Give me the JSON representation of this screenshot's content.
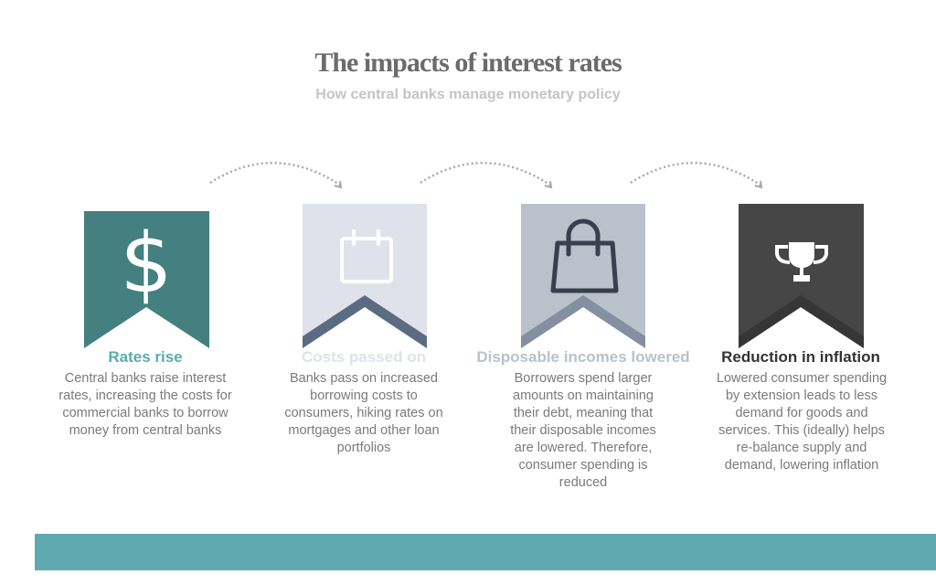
{
  "title": "The impacts of interest rates",
  "subtitle": "How central banks manage monetary policy",
  "steps": [
    {
      "heading": "Rates rise",
      "text": "Central banks raise interest rates, increasing the costs for commercial banks to borrow money from central banks",
      "icon": "dollar-icon",
      "color": "#43807f",
      "heading_color": "#5aabae"
    },
    {
      "heading": "Costs passed on",
      "text": "Banks pass on increased borrowing costs to consumers, hiking rates on mortgages and other loan portfolios",
      "icon": "calendar-icon",
      "color": "#dfe2ea",
      "heading_color": "#dfe2ea"
    },
    {
      "heading": "Disposable incomes lowered",
      "text": "Borrowers spend larger amounts on maintaining their debt, meaning that their disposable incomes are lowered. Therefore, consumer spending is reduced",
      "icon": "shopping-bag-icon",
      "color": "#b9c1cb",
      "heading_color": "#b9c1cb"
    },
    {
      "heading": "Reduction in inflation",
      "text": "Lowered consumer spending by extension leads to less demand for goods and services. This (ideally) helps re-balance supply and demand, lowering inflation",
      "icon": "trophy-icon",
      "color": "#464646",
      "heading_color": "#333333"
    }
  ]
}
